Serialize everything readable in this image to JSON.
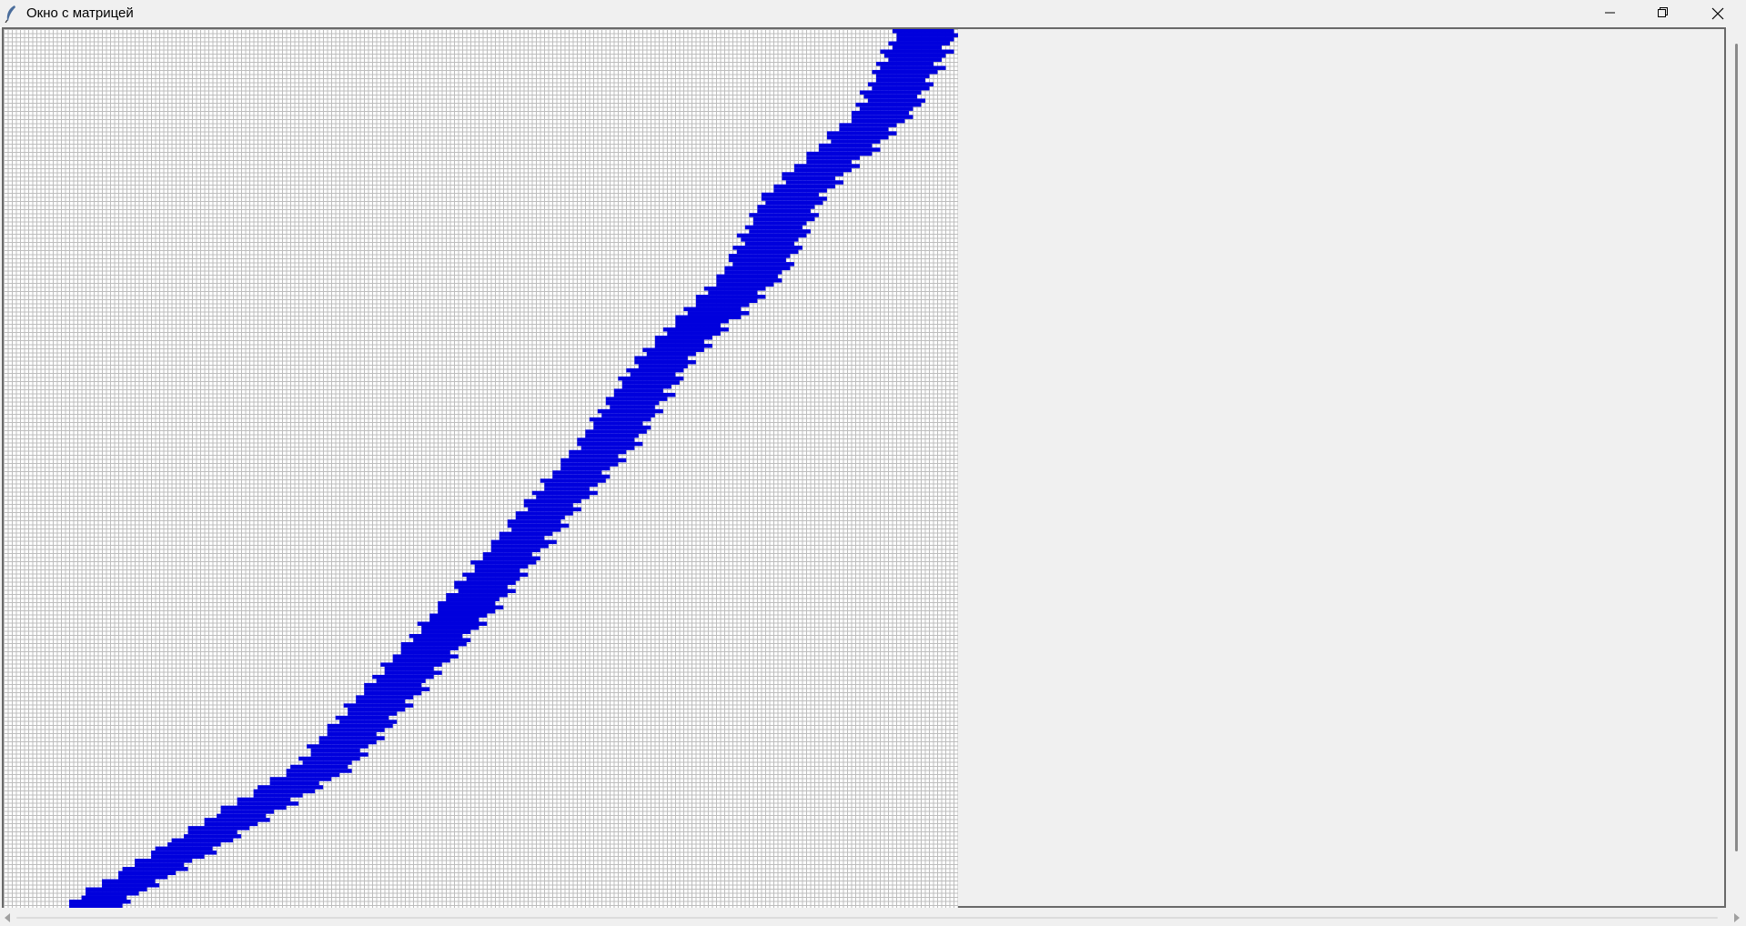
{
  "window": {
    "title": "Окно с матрицей",
    "icon": "feather-icon",
    "controls": [
      "minimize-icon",
      "restore-icon",
      "close-icon"
    ]
  },
  "colors": {
    "fill": "#0000dd",
    "grid_line": "#bdbdbd",
    "cell_background": "#ffffff",
    "window_background": "#f0f0f0"
  },
  "matrix": {
    "visible_columns": 233,
    "visible_rows": 215,
    "band": [
      {
        "row": 0,
        "from": 218,
        "to": 232
      },
      {
        "row": 20,
        "from": 208,
        "to": 221
      },
      {
        "row": 40,
        "from": 186,
        "to": 199
      },
      {
        "row": 60,
        "from": 175,
        "to": 189
      },
      {
        "row": 80,
        "from": 155,
        "to": 167
      },
      {
        "row": 100,
        "from": 141,
        "to": 154
      },
      {
        "row": 120,
        "from": 124,
        "to": 136
      },
      {
        "row": 140,
        "from": 107,
        "to": 120
      },
      {
        "row": 160,
        "from": 89,
        "to": 102
      },
      {
        "row": 180,
        "from": 71,
        "to": 84
      },
      {
        "row": 200,
        "from": 38,
        "to": 51
      },
      {
        "row": 214,
        "from": 15,
        "to": 27
      }
    ]
  }
}
